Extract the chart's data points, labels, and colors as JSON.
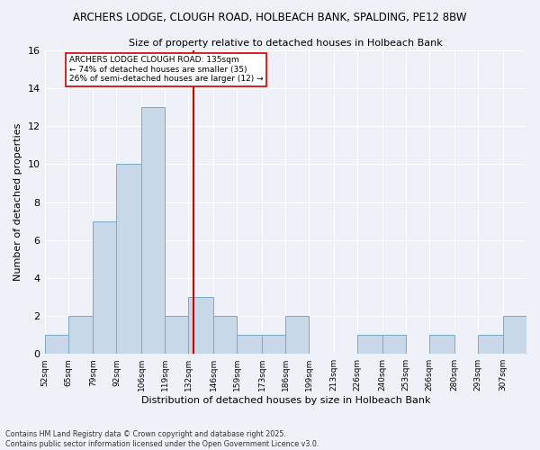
{
  "title1": "ARCHERS LODGE, CLOUGH ROAD, HOLBEACH BANK, SPALDING, PE12 8BW",
  "title2": "Size of property relative to detached houses in Holbeach Bank",
  "xlabel": "Distribution of detached houses by size in Holbeach Bank",
  "ylabel": "Number of detached properties",
  "footer1": "Contains HM Land Registry data © Crown copyright and database right 2025.",
  "footer2": "Contains public sector information licensed under the Open Government Licence v3.0.",
  "bins": [
    52,
    65,
    79,
    92,
    106,
    119,
    132,
    146,
    159,
    173,
    186,
    199,
    213,
    226,
    240,
    253,
    266,
    280,
    293,
    307,
    320
  ],
  "counts": [
    1,
    2,
    7,
    10,
    13,
    2,
    3,
    2,
    1,
    1,
    2,
    0,
    0,
    1,
    1,
    0,
    1,
    0,
    1,
    2
  ],
  "bar_color": "#c8d8e8",
  "bar_edge_color": "#7aaac8",
  "vline_x": 135,
  "vline_color": "#cc0000",
  "annotation_text": "ARCHERS LODGE CLOUGH ROAD: 135sqm\n← 74% of detached houses are smaller (35)\n26% of semi-detached houses are larger (12) →",
  "annotation_box_color": "white",
  "annotation_box_edge": "#cc0000",
  "ylim": [
    0,
    16
  ],
  "yticks": [
    0,
    2,
    4,
    6,
    8,
    10,
    12,
    14,
    16
  ],
  "bg_color": "#eef2f8",
  "grid_color": "white"
}
